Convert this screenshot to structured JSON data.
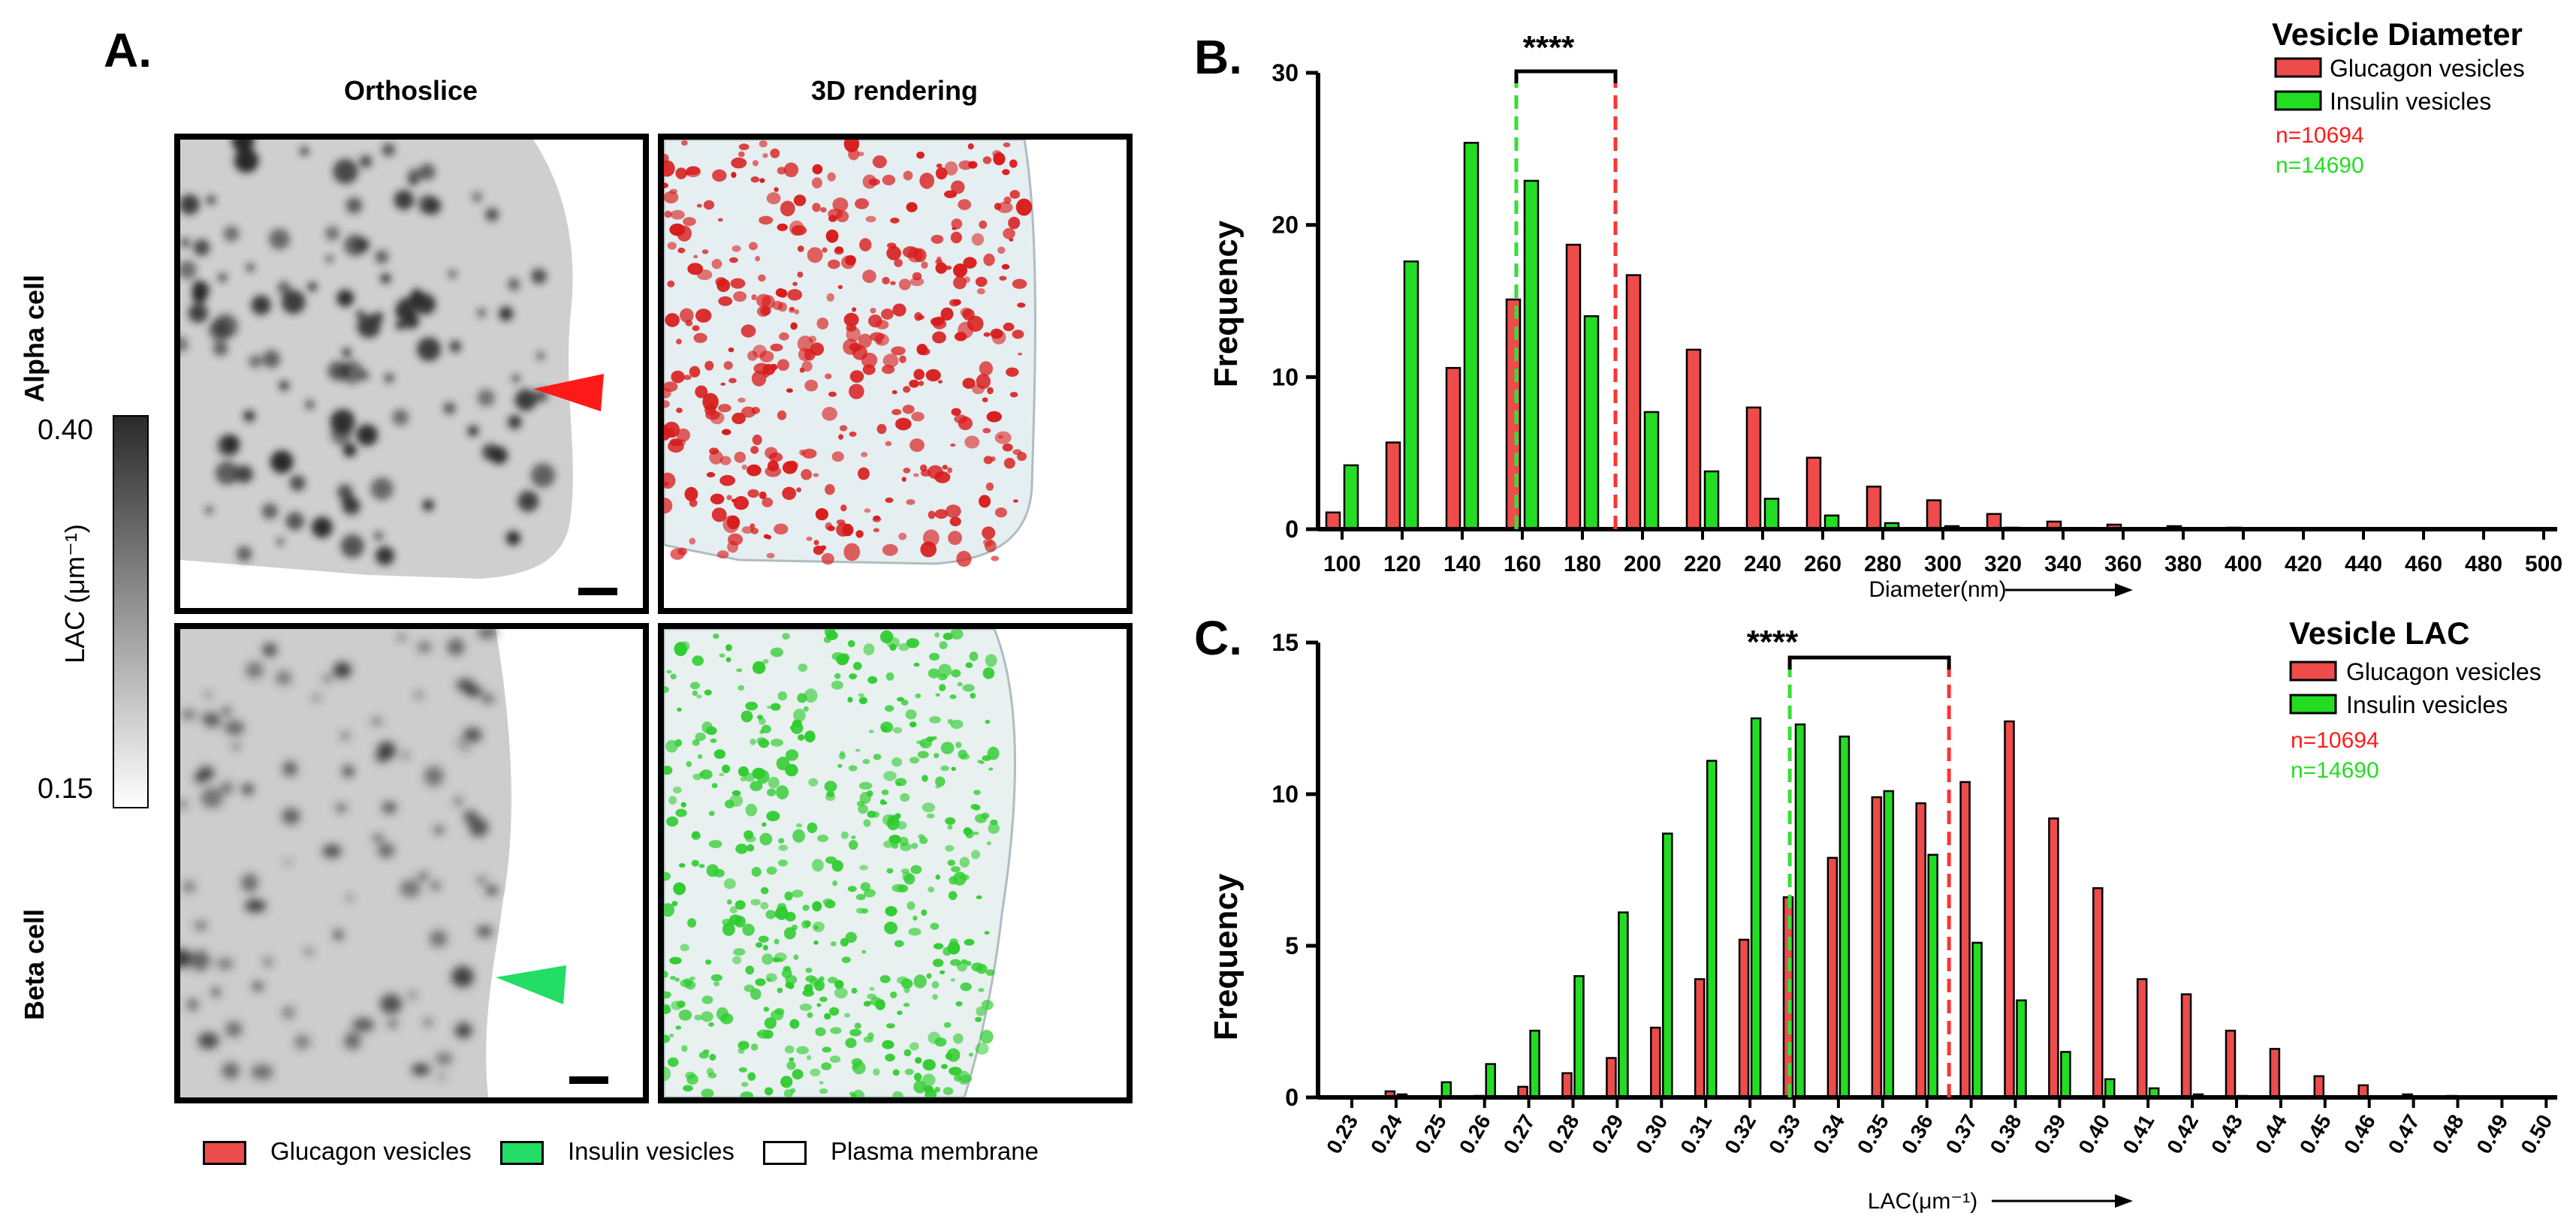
{
  "panel_a": {
    "letter": "A.",
    "col_orthoslice": "Orthoslice",
    "col_3d": "3D rendering",
    "row_alpha": "Alpha cell",
    "row_beta": "Beta cell",
    "colorbar": {
      "max": "0.40",
      "min": "0.15",
      "label": "LAC (μm⁻¹)"
    },
    "legend": {
      "glucagon": "Glucagon vesicles",
      "insulin": "Insulin vesicles",
      "membrane": "Plasma membrane"
    },
    "colors": {
      "red": "#e02020",
      "green": "#22dd22"
    }
  },
  "chart_data": [
    {
      "panel": "B.",
      "type": "bar",
      "title": "Vesicle Diameter",
      "xlabel": "Diameter(nm)",
      "ylabel": "Frequency",
      "ylim": [
        0,
        30
      ],
      "yticks": [
        "0",
        "10",
        "20",
        "30"
      ],
      "categories": [
        "100",
        "120",
        "140",
        "160",
        "180",
        "200",
        "220",
        "240",
        "260",
        "280",
        "300",
        "320",
        "340",
        "360",
        "380",
        "400",
        "420",
        "440",
        "460",
        "480",
        "500"
      ],
      "series": [
        {
          "name": "Glucagon vesicles",
          "color": "#ee4b4b",
          "values": [
            1.1,
            5.7,
            10.6,
            15.1,
            18.7,
            16.7,
            11.8,
            8.0,
            4.7,
            2.8,
            1.9,
            1.0,
            0.5,
            0.3,
            0.2,
            0.1,
            0.05,
            0.05,
            0.03,
            0.02,
            0.02
          ]
        },
        {
          "name": "Insulin vesicles",
          "color": "#22dd22",
          "values": [
            4.2,
            17.6,
            25.4,
            22.9,
            14.0,
            7.7,
            3.8,
            2.0,
            0.9,
            0.4,
            0.2,
            0.1,
            0.05,
            0.03,
            0.02,
            0.01,
            0.01,
            0.0,
            0.0,
            0.0,
            0.0
          ]
        }
      ],
      "mean_lines": {
        "insulin": 158,
        "glucagon": 191
      },
      "significance": "****",
      "n_glucagon": "n=10694",
      "n_insulin": "n=14690"
    },
    {
      "panel": "C.",
      "type": "bar",
      "title": "Vesicle LAC",
      "xlabel": "LAC(μm⁻¹)",
      "ylabel": "Frequency",
      "ylim": [
        0,
        15
      ],
      "yticks": [
        "0",
        "5",
        "10",
        "15"
      ],
      "categories": [
        "0.23",
        "0.24",
        "0.25",
        "0.26",
        "0.27",
        "0.28",
        "0.29",
        "0.30",
        "0.31",
        "0.32",
        "0.33",
        "0.34",
        "0.35",
        "0.36",
        "0.37",
        "0.38",
        "0.39",
        "0.40",
        "0.41",
        "0.42",
        "0.43",
        "0.44",
        "0.45",
        "0.46",
        "0.47",
        "0.48",
        "0.49",
        "0.50"
      ],
      "series": [
        {
          "name": "Glucagon vesicles",
          "color": "#ee4b4b",
          "values": [
            0.0,
            0.2,
            0.0,
            0.05,
            0.35,
            0.8,
            1.3,
            2.3,
            3.9,
            5.2,
            6.6,
            7.9,
            9.9,
            9.7,
            10.4,
            12.4,
            9.2,
            6.9,
            3.9,
            3.4,
            2.2,
            1.6,
            0.7,
            0.4,
            0.1,
            0.05,
            0.03,
            0.02
          ]
        },
        {
          "name": "Insulin vesicles",
          "color": "#22dd22",
          "values": [
            0.0,
            0.1,
            0.5,
            1.1,
            2.2,
            4.0,
            6.1,
            8.7,
            11.1,
            12.5,
            12.3,
            11.9,
            10.1,
            8.0,
            5.1,
            3.2,
            1.5,
            0.6,
            0.3,
            0.1,
            0.05,
            0.02,
            0.01,
            0.0,
            0.0,
            0.0,
            0.0,
            0.0
          ]
        }
      ],
      "mean_lines": {
        "insulin": 0.329,
        "glucagon": 0.365
      },
      "significance": "****",
      "n_glucagon": "n=10694",
      "n_insulin": "n=14690"
    }
  ]
}
